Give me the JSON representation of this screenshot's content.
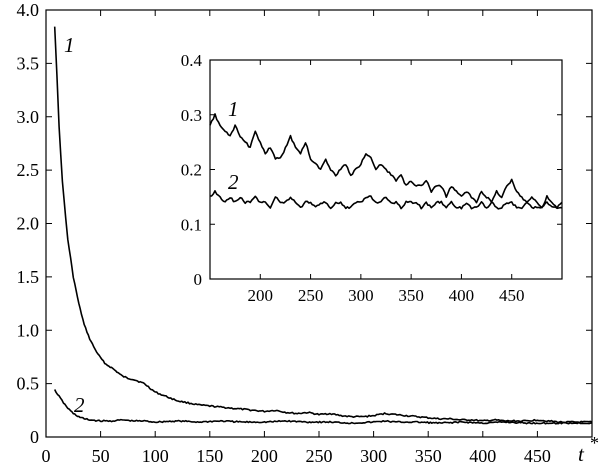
{
  "chart_data": [
    {
      "type": "line",
      "title": "",
      "xlabel": "t*",
      "ylabel": "",
      "xlim": [
        0,
        500
      ],
      "ylim": [
        0,
        4.0
      ],
      "xticks": [
        "0",
        "50",
        "100",
        "150",
        "200",
        "250",
        "300",
        "350",
        "400",
        "450"
      ],
      "yticks": [
        "0",
        "0.5",
        "1.0",
        "1.5",
        "2.0",
        "2.5",
        "3.0",
        "3.5",
        "4.0"
      ],
      "grid": false,
      "series": [
        {
          "name": "1",
          "x": [
            8,
            10,
            12,
            15,
            18,
            20,
            25,
            30,
            35,
            40,
            45,
            50,
            55,
            60,
            65,
            70,
            75,
            80,
            85,
            90,
            95,
            100,
            110,
            120,
            130,
            140,
            150,
            160,
            170,
            180,
            190,
            200,
            210,
            220,
            230,
            240,
            250,
            260,
            270,
            280,
            290,
            300,
            310,
            320,
            330,
            340,
            350,
            360,
            370,
            380,
            390,
            400,
            410,
            420,
            430,
            440,
            450,
            460,
            470,
            480,
            490,
            500
          ],
          "y": [
            3.85,
            3.4,
            2.9,
            2.4,
            2.05,
            1.85,
            1.5,
            1.25,
            1.05,
            0.92,
            0.82,
            0.74,
            0.68,
            0.65,
            0.61,
            0.57,
            0.55,
            0.54,
            0.52,
            0.5,
            0.46,
            0.42,
            0.38,
            0.34,
            0.32,
            0.3,
            0.29,
            0.28,
            0.27,
            0.26,
            0.25,
            0.24,
            0.25,
            0.23,
            0.22,
            0.23,
            0.21,
            0.22,
            0.2,
            0.19,
            0.19,
            0.2,
            0.22,
            0.21,
            0.2,
            0.19,
            0.18,
            0.17,
            0.17,
            0.16,
            0.16,
            0.15,
            0.16,
            0.15,
            0.15,
            0.15,
            0.16,
            0.15,
            0.14,
            0.14,
            0.14,
            0.14
          ]
        },
        {
          "name": "2",
          "x": [
            8,
            12,
            16,
            20,
            25,
            30,
            35,
            40,
            50,
            60,
            70,
            80,
            90,
            100,
            120,
            140,
            160,
            180,
            200,
            220,
            240,
            260,
            280,
            300,
            310,
            320,
            340,
            360,
            380,
            400,
            420,
            440,
            460,
            480,
            500
          ],
          "y": [
            0.44,
            0.38,
            0.32,
            0.27,
            0.22,
            0.19,
            0.17,
            0.16,
            0.15,
            0.15,
            0.16,
            0.15,
            0.15,
            0.14,
            0.15,
            0.14,
            0.15,
            0.14,
            0.14,
            0.15,
            0.14,
            0.14,
            0.13,
            0.14,
            0.15,
            0.14,
            0.14,
            0.13,
            0.14,
            0.13,
            0.14,
            0.13,
            0.13,
            0.13,
            0.13
          ]
        }
      ]
    },
    {
      "type": "line",
      "title": "",
      "xlabel": "",
      "ylabel": "",
      "xlim": [
        150,
        500
      ],
      "ylim": [
        0,
        0.4
      ],
      "xticks": [
        "200",
        "250",
        "300",
        "350",
        "400",
        "450"
      ],
      "yticks": [
        "0",
        "0.1",
        "0.2",
        "0.3",
        "0.4"
      ],
      "grid": false,
      "series": [
        {
          "name": "1",
          "x": [
            150,
            155,
            160,
            165,
            170,
            175,
            180,
            185,
            190,
            195,
            200,
            205,
            210,
            215,
            220,
            225,
            230,
            235,
            240,
            245,
            250,
            255,
            260,
            265,
            270,
            275,
            280,
            285,
            290,
            295,
            300,
            305,
            310,
            315,
            320,
            325,
            330,
            335,
            340,
            345,
            350,
            355,
            360,
            365,
            370,
            375,
            380,
            385,
            390,
            395,
            400,
            405,
            410,
            415,
            420,
            425,
            430,
            435,
            440,
            445,
            450,
            455,
            460,
            465,
            470,
            475,
            480,
            485,
            490,
            495,
            500
          ],
          "y": [
            0.28,
            0.3,
            0.28,
            0.27,
            0.26,
            0.28,
            0.26,
            0.25,
            0.24,
            0.27,
            0.25,
            0.23,
            0.24,
            0.22,
            0.22,
            0.24,
            0.26,
            0.24,
            0.23,
            0.25,
            0.22,
            0.21,
            0.2,
            0.22,
            0.2,
            0.19,
            0.2,
            0.21,
            0.19,
            0.2,
            0.21,
            0.23,
            0.22,
            0.2,
            0.21,
            0.2,
            0.19,
            0.18,
            0.19,
            0.17,
            0.18,
            0.17,
            0.17,
            0.18,
            0.16,
            0.17,
            0.17,
            0.15,
            0.17,
            0.16,
            0.15,
            0.16,
            0.15,
            0.14,
            0.16,
            0.15,
            0.14,
            0.16,
            0.15,
            0.17,
            0.18,
            0.16,
            0.15,
            0.14,
            0.15,
            0.14,
            0.13,
            0.15,
            0.14,
            0.13,
            0.14
          ]
        },
        {
          "name": "2",
          "x": [
            150,
            155,
            160,
            165,
            170,
            175,
            180,
            185,
            190,
            195,
            200,
            205,
            210,
            215,
            220,
            225,
            230,
            235,
            240,
            245,
            250,
            255,
            260,
            265,
            270,
            275,
            280,
            285,
            290,
            295,
            300,
            305,
            310,
            315,
            320,
            325,
            330,
            335,
            340,
            345,
            350,
            355,
            360,
            365,
            370,
            375,
            380,
            385,
            390,
            395,
            400,
            405,
            410,
            415,
            420,
            425,
            430,
            435,
            440,
            445,
            450,
            455,
            460,
            465,
            470,
            475,
            480,
            485,
            490,
            495,
            500
          ],
          "y": [
            0.15,
            0.16,
            0.15,
            0.14,
            0.15,
            0.14,
            0.15,
            0.14,
            0.14,
            0.15,
            0.14,
            0.14,
            0.13,
            0.15,
            0.14,
            0.14,
            0.15,
            0.14,
            0.13,
            0.14,
            0.14,
            0.13,
            0.14,
            0.14,
            0.13,
            0.14,
            0.14,
            0.13,
            0.13,
            0.14,
            0.14,
            0.15,
            0.15,
            0.14,
            0.14,
            0.15,
            0.14,
            0.14,
            0.13,
            0.14,
            0.14,
            0.14,
            0.13,
            0.14,
            0.13,
            0.14,
            0.14,
            0.13,
            0.14,
            0.13,
            0.13,
            0.14,
            0.13,
            0.13,
            0.14,
            0.13,
            0.14,
            0.13,
            0.13,
            0.14,
            0.14,
            0.13,
            0.13,
            0.14,
            0.13,
            0.13,
            0.13,
            0.14,
            0.13,
            0.13,
            0.13
          ]
        }
      ]
    }
  ]
}
